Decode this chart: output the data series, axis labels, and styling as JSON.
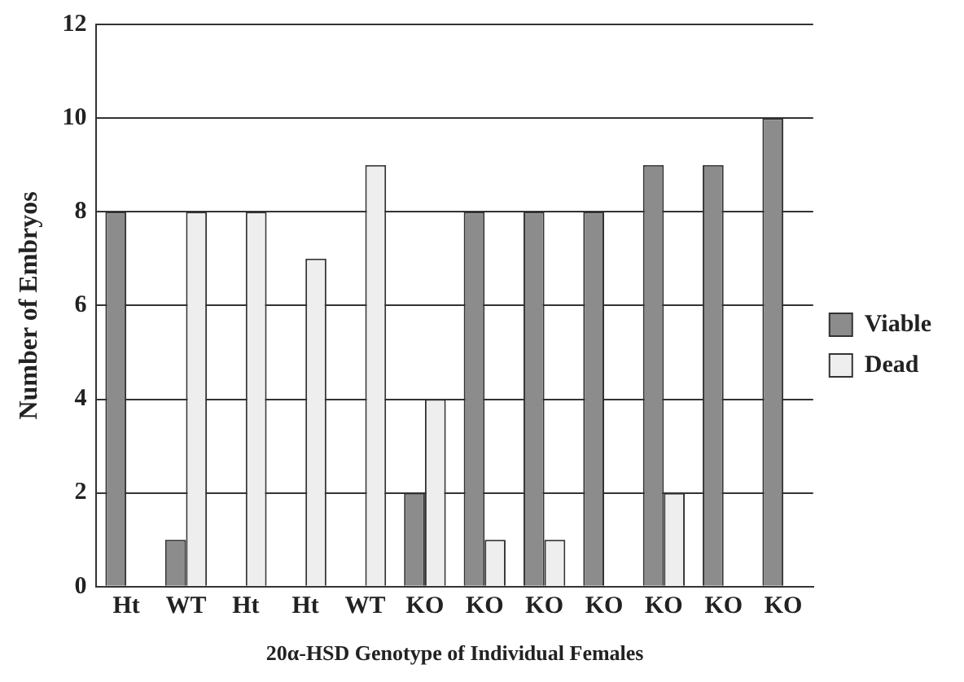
{
  "chart_data": {
    "type": "bar",
    "xlabel": "20α-HSD Genotype of Individual Females",
    "ylabel": "Number of Embryos",
    "categories": [
      "Ht",
      "WT",
      "Ht",
      "Ht",
      "WT",
      "KO",
      "KO",
      "KO",
      "KO",
      "KO",
      "KO",
      "KO"
    ],
    "series": [
      {
        "name": "Viable",
        "color": "#8c8c8c",
        "values": [
          8,
          1,
          0,
          0,
          0,
          2,
          8,
          8,
          8,
          9,
          9,
          10
        ]
      },
      {
        "name": "Dead",
        "color": "#eeeeee",
        "values": [
          0,
          8,
          8,
          7,
          9,
          4,
          1,
          1,
          0,
          2,
          0,
          0
        ]
      }
    ],
    "ylim": [
      0,
      12
    ],
    "yticks": [
      0,
      2,
      4,
      6,
      8,
      10,
      12
    ],
    "grid": "y",
    "legend": "right"
  }
}
